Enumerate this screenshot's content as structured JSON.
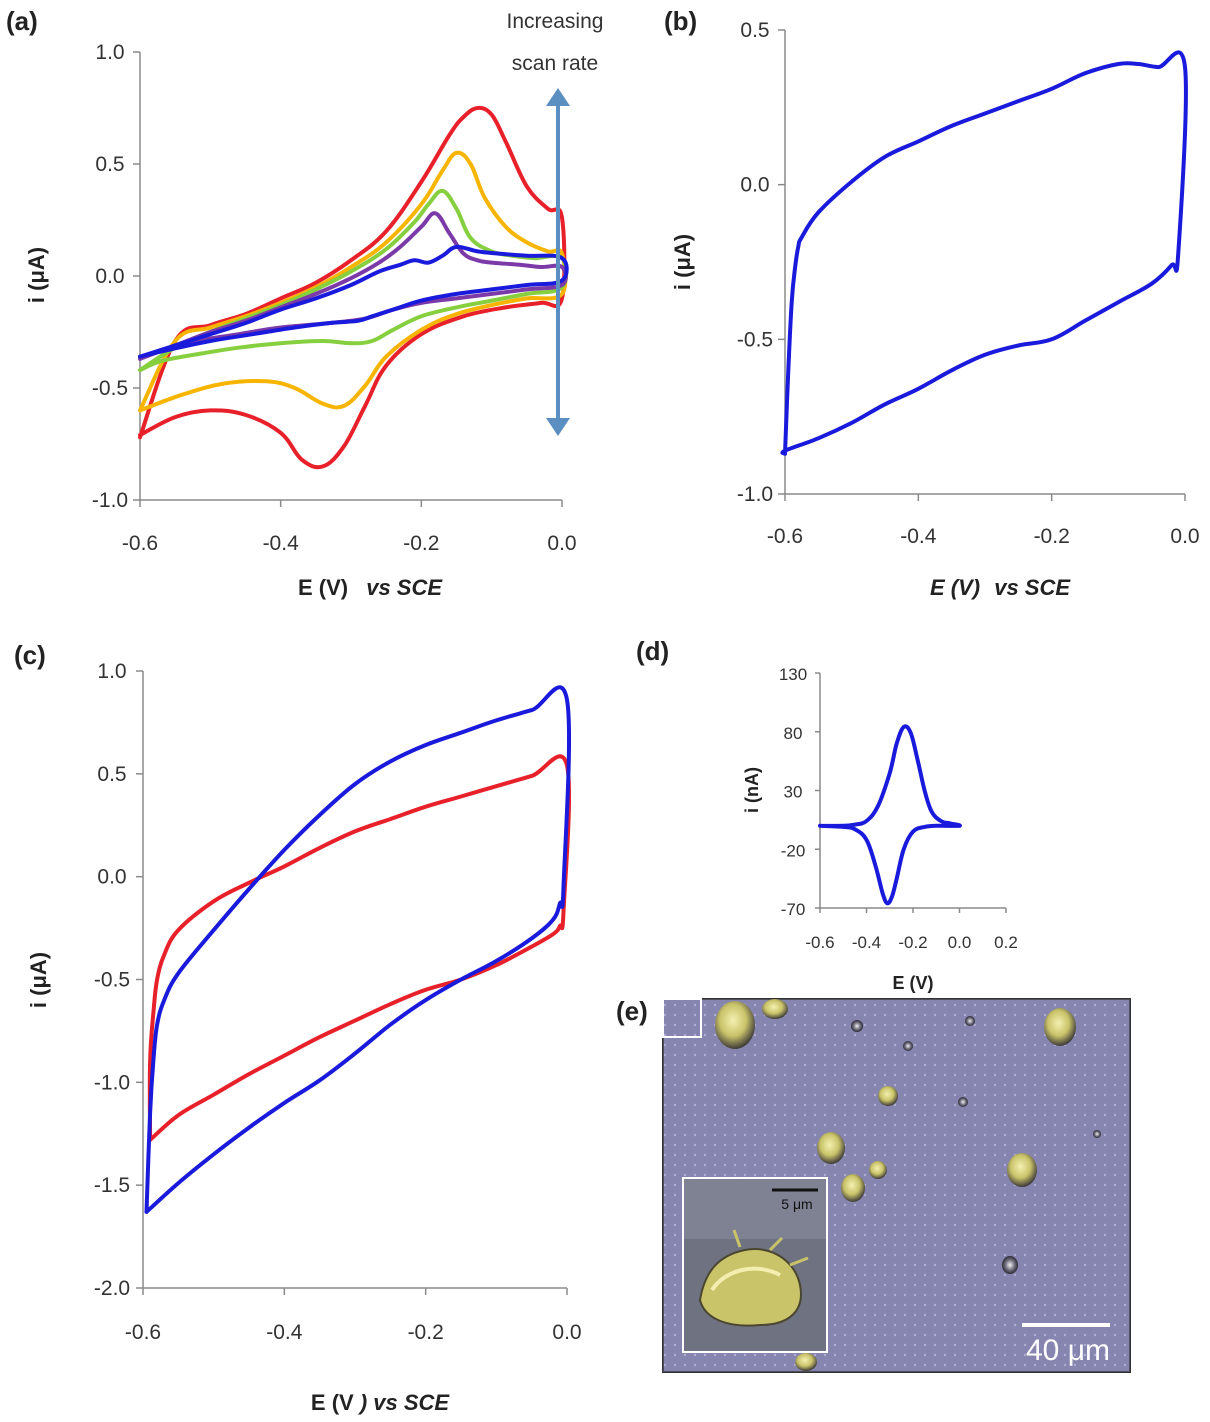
{
  "panel_labels": {
    "a": "(a)",
    "b": "(b)",
    "c": "(c)",
    "d": "(d)",
    "e": "(e)"
  },
  "colors": {
    "red": "#e8202a",
    "orange": "#f7b500",
    "green": "#86cf3f",
    "purple": "#7b3aa8",
    "blue": "#1a1adc",
    "arrow": "#5b8fc2"
  },
  "chart_data": [
    {
      "id": "a",
      "type": "line",
      "xlabel_main": "E (V)",
      "xlabel_em": "vs SCE",
      "ylabel": "i (μA)",
      "xlim": [
        -0.6,
        0.0
      ],
      "ylim": [
        -1.0,
        1.0
      ],
      "xticks": [
        "-0.6",
        "-0.4",
        "-0.2",
        "0.0"
      ],
      "yticks": [
        "1.0",
        "0.5",
        "0.0",
        "-0.5",
        "-1.0"
      ],
      "annotation": [
        "Increasing",
        "scan rate"
      ],
      "series": [
        {
          "color": "red",
          "x": [
            -0.6,
            -0.55,
            -0.5,
            -0.45,
            -0.4,
            -0.35,
            -0.3,
            -0.25,
            -0.2,
            -0.16,
            -0.14,
            -0.12,
            -0.1,
            -0.08,
            -0.05,
            -0.02,
            0.0,
            0.0,
            -0.03,
            -0.08,
            -0.14,
            -0.2,
            -0.25,
            -0.28,
            -0.31,
            -0.34,
            -0.37,
            -0.4,
            -0.45,
            -0.5,
            -0.55,
            -0.6
          ],
          "y": [
            -0.72,
            -0.29,
            -0.22,
            -0.17,
            -0.1,
            -0.03,
            0.07,
            0.2,
            0.42,
            0.63,
            0.71,
            0.75,
            0.72,
            0.6,
            0.4,
            0.3,
            0.26,
            -0.1,
            -0.12,
            -0.14,
            -0.18,
            -0.26,
            -0.4,
            -0.58,
            -0.76,
            -0.85,
            -0.82,
            -0.7,
            -0.62,
            -0.6,
            -0.63,
            -0.71
          ]
        },
        {
          "color": "orange",
          "x": [
            -0.6,
            -0.55,
            -0.5,
            -0.45,
            -0.4,
            -0.35,
            -0.3,
            -0.25,
            -0.2,
            -0.17,
            -0.15,
            -0.13,
            -0.11,
            -0.08,
            -0.05,
            -0.02,
            0.0,
            0.0,
            -0.05,
            -0.1,
            -0.15,
            -0.2,
            -0.25,
            -0.28,
            -0.31,
            -0.34,
            -0.38,
            -0.42,
            -0.48,
            -0.54,
            -0.6
          ],
          "y": [
            -0.6,
            -0.29,
            -0.23,
            -0.18,
            -0.12,
            -0.05,
            0.04,
            0.15,
            0.32,
            0.47,
            0.55,
            0.5,
            0.35,
            0.22,
            0.15,
            0.11,
            0.1,
            -0.08,
            -0.1,
            -0.13,
            -0.17,
            -0.24,
            -0.36,
            -0.49,
            -0.58,
            -0.57,
            -0.5,
            -0.47,
            -0.48,
            -0.53,
            -0.6
          ]
        },
        {
          "color": "green",
          "x": [
            -0.6,
            -0.55,
            -0.5,
            -0.45,
            -0.4,
            -0.35,
            -0.3,
            -0.25,
            -0.21,
            -0.19,
            -0.17,
            -0.15,
            -0.13,
            -0.1,
            -0.07,
            -0.04,
            0.0,
            0.0,
            -0.05,
            -0.1,
            -0.15,
            -0.2,
            -0.24,
            -0.27,
            -0.3,
            -0.34,
            -0.4,
            -0.46,
            -0.52,
            -0.57,
            -0.6
          ],
          "y": [
            -0.42,
            -0.32,
            -0.25,
            -0.19,
            -0.13,
            -0.06,
            0.02,
            0.12,
            0.24,
            0.32,
            0.38,
            0.3,
            0.17,
            0.11,
            0.09,
            0.08,
            0.08,
            -0.05,
            -0.08,
            -0.11,
            -0.14,
            -0.18,
            -0.24,
            -0.29,
            -0.3,
            -0.29,
            -0.3,
            -0.32,
            -0.35,
            -0.38,
            -0.42
          ]
        },
        {
          "color": "purple",
          "x": [
            -0.6,
            -0.55,
            -0.5,
            -0.45,
            -0.4,
            -0.35,
            -0.3,
            -0.26,
            -0.23,
            -0.2,
            -0.18,
            -0.16,
            -0.14,
            -0.12,
            -0.1,
            -0.06,
            -0.03,
            0.0,
            0.0,
            -0.05,
            -0.1,
            -0.15,
            -0.2,
            -0.24,
            -0.28,
            -0.33,
            -0.4,
            -0.46,
            -0.52,
            -0.57,
            -0.6
          ],
          "y": [
            -0.37,
            -0.31,
            -0.25,
            -0.2,
            -0.14,
            -0.08,
            -0.01,
            0.06,
            0.13,
            0.22,
            0.28,
            0.19,
            0.1,
            0.07,
            0.06,
            0.05,
            0.04,
            0.04,
            -0.04,
            -0.06,
            -0.08,
            -0.1,
            -0.12,
            -0.15,
            -0.19,
            -0.21,
            -0.23,
            -0.26,
            -0.29,
            -0.33,
            -0.37
          ]
        },
        {
          "color": "blue",
          "x": [
            -0.6,
            -0.55,
            -0.5,
            -0.45,
            -0.4,
            -0.35,
            -0.3,
            -0.26,
            -0.23,
            -0.21,
            -0.19,
            -0.17,
            -0.15,
            -0.12,
            -0.09,
            -0.05,
            0.0,
            0.0,
            -0.05,
            -0.1,
            -0.15,
            -0.2,
            -0.24,
            -0.27,
            -0.29,
            -0.33,
            -0.38,
            -0.44,
            -0.5,
            -0.56,
            -0.6
          ],
          "y": [
            -0.36,
            -0.31,
            -0.26,
            -0.21,
            -0.15,
            -0.1,
            -0.04,
            0.02,
            0.05,
            0.07,
            0.06,
            0.09,
            0.13,
            0.11,
            0.1,
            0.09,
            0.08,
            -0.02,
            -0.04,
            -0.06,
            -0.08,
            -0.11,
            -0.15,
            -0.18,
            -0.2,
            -0.21,
            -0.23,
            -0.26,
            -0.29,
            -0.33,
            -0.36
          ]
        }
      ]
    },
    {
      "id": "b",
      "type": "line",
      "xlabel_main": "E (V)",
      "xlabel_em": "vs SCE",
      "ylabel": "i (μA)",
      "xlim": [
        -0.6,
        0.0
      ],
      "ylim": [
        -1.0,
        0.5
      ],
      "xticks": [
        "-0.6",
        "-0.4",
        "-0.2",
        "0.0"
      ],
      "yticks": [
        "0.5",
        "0.0",
        "-0.5",
        "-1.0"
      ],
      "series": [
        {
          "color": "blue",
          "x": [
            -0.6,
            -0.595,
            -0.59,
            -0.585,
            -0.58,
            -0.575,
            -0.55,
            -0.5,
            -0.45,
            -0.4,
            -0.35,
            -0.3,
            -0.25,
            -0.2,
            -0.15,
            -0.1,
            -0.07,
            -0.04,
            0.0,
            -0.01,
            -0.02,
            -0.05,
            -0.1,
            -0.15,
            -0.2,
            -0.25,
            -0.3,
            -0.35,
            -0.4,
            -0.45,
            -0.5,
            -0.55,
            -0.6,
            -0.6
          ],
          "y": [
            -0.87,
            -0.6,
            -0.38,
            -0.27,
            -0.2,
            -0.17,
            -0.09,
            0.01,
            0.09,
            0.14,
            0.19,
            0.23,
            0.27,
            0.31,
            0.36,
            0.39,
            0.39,
            0.38,
            0.38,
            -0.22,
            -0.26,
            -0.32,
            -0.38,
            -0.44,
            -0.5,
            -0.52,
            -0.55,
            -0.6,
            -0.66,
            -0.71,
            -0.77,
            -0.82,
            -0.86,
            -0.87
          ]
        }
      ]
    },
    {
      "id": "c",
      "type": "line",
      "xlabel_main": "E (V",
      "xlabel_em": ") vs SCE",
      "ylabel": "i  (μA)",
      "xlim": [
        -0.6,
        0.0
      ],
      "ylim": [
        -2.0,
        1.0
      ],
      "xticks": [
        "-0.6",
        "-0.4",
        "-0.2",
        "0.0"
      ],
      "yticks": [
        "1.0",
        "0.5",
        "0.0",
        "-0.5",
        "-1.0",
        "-1.5",
        "-2.0"
      ],
      "series": [
        {
          "color": "red",
          "x": [
            -0.59,
            -0.59,
            -0.585,
            -0.58,
            -0.57,
            -0.55,
            -0.5,
            -0.45,
            -0.4,
            -0.35,
            -0.3,
            -0.25,
            -0.2,
            -0.15,
            -0.1,
            -0.05,
            0.0,
            -0.005,
            -0.01,
            -0.02,
            -0.05,
            -0.1,
            -0.15,
            -0.2,
            -0.25,
            -0.3,
            -0.35,
            -0.4,
            -0.45,
            -0.5,
            -0.55,
            -0.59
          ],
          "y": [
            -1.28,
            -0.9,
            -0.65,
            -0.5,
            -0.38,
            -0.26,
            -0.12,
            -0.03,
            0.05,
            0.14,
            0.22,
            0.28,
            0.34,
            0.39,
            0.44,
            0.49,
            0.54,
            -0.17,
            -0.24,
            -0.28,
            -0.34,
            -0.43,
            -0.5,
            -0.55,
            -0.62,
            -0.7,
            -0.78,
            -0.87,
            -0.96,
            -1.06,
            -1.16,
            -1.28
          ]
        },
        {
          "color": "blue",
          "x": [
            -0.595,
            -0.59,
            -0.585,
            -0.58,
            -0.57,
            -0.55,
            -0.5,
            -0.45,
            -0.4,
            -0.35,
            -0.3,
            -0.25,
            -0.2,
            -0.15,
            -0.1,
            -0.05,
            0.0,
            -0.005,
            -0.01,
            -0.02,
            -0.05,
            -0.1,
            -0.15,
            -0.2,
            -0.25,
            -0.3,
            -0.35,
            -0.4,
            -0.45,
            -0.5,
            -0.55,
            -0.595
          ],
          "y": [
            -1.63,
            -1.15,
            -0.88,
            -0.72,
            -0.6,
            -0.47,
            -0.26,
            -0.06,
            0.13,
            0.3,
            0.45,
            0.56,
            0.64,
            0.7,
            0.76,
            0.81,
            0.86,
            -0.05,
            -0.13,
            -0.21,
            -0.3,
            -0.41,
            -0.5,
            -0.6,
            -0.72,
            -0.86,
            -0.99,
            -1.1,
            -1.22,
            -1.35,
            -1.49,
            -1.63
          ]
        }
      ]
    },
    {
      "id": "d",
      "type": "line",
      "xlabel_main": "E (V)",
      "ylabel": "i (nA)",
      "xlim": [
        -0.6,
        0.2
      ],
      "ylim": [
        -70,
        130
      ],
      "xticks": [
        "-0.6",
        "-0.4",
        "-0.2",
        "0.0",
        "0.2"
      ],
      "yticks": [
        "130",
        "80",
        "30",
        "-20",
        "-70"
      ],
      "series": [
        {
          "color": "blue",
          "x": [
            -0.6,
            -0.5,
            -0.45,
            -0.4,
            -0.35,
            -0.3,
            -0.27,
            -0.24,
            -0.21,
            -0.18,
            -0.15,
            -0.12,
            -0.08,
            -0.04,
            0.0,
            -0.1,
            -0.15,
            -0.2,
            -0.24,
            -0.27,
            -0.29,
            -0.31,
            -0.33,
            -0.36,
            -0.4,
            -0.45,
            -0.5,
            -0.6
          ],
          "y": [
            0,
            0,
            1,
            4,
            17,
            45,
            70,
            84,
            79,
            56,
            30,
            12,
            4,
            2,
            0,
            0,
            -1,
            -5,
            -20,
            -45,
            -60,
            -66,
            -58,
            -35,
            -12,
            -3,
            -1,
            0
          ]
        }
      ]
    }
  ],
  "image_e": {
    "description_label": "SEM image",
    "scale_bar_main": "40 μm",
    "scale_bar_inset": "5 μm"
  }
}
